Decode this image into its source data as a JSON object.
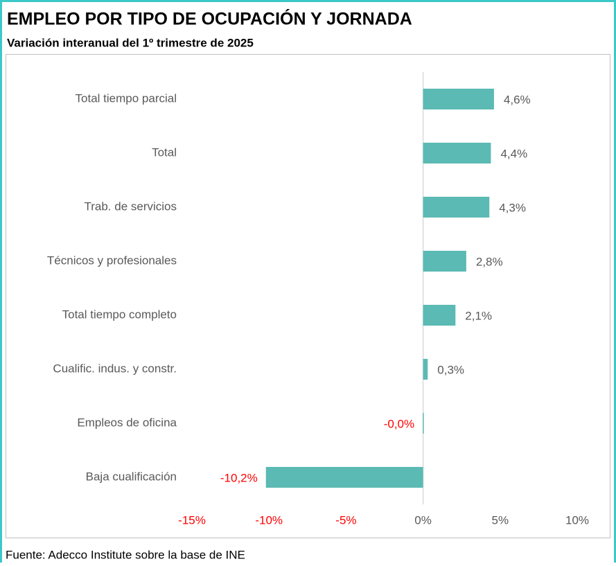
{
  "chart_data": {
    "type": "barh",
    "title": "EMPLEO POR TIPO DE OCUPACIÓN Y JORNADA",
    "subtitle": "Variación interanual del 1º trimestre de 2025",
    "categories": [
      "Total tiempo parcial",
      "Total",
      "Trab. de servicios",
      "Técnicos y profesionales",
      "Total tiempo completo",
      "Cualific. indus. y constr.",
      "Empleos de oficina",
      "Baja cualificación"
    ],
    "values": [
      4.6,
      4.4,
      4.3,
      2.8,
      2.1,
      0.3,
      -0.02,
      -10.2
    ],
    "value_labels": [
      "4,6%",
      "4,4%",
      "4,3%",
      "2,8%",
      "2,1%",
      "0,3%",
      "-0,0%",
      "-10,2%"
    ],
    "color": "#5bbab3",
    "negative_label_color": "#ff0000",
    "xlim": [
      -15,
      10
    ],
    "xticks": [
      {
        "value": -15,
        "label": "-15%"
      },
      {
        "value": -10,
        "label": "-10%"
      },
      {
        "value": -5,
        "label": "-5%"
      },
      {
        "value": 0,
        "label": "0%"
      },
      {
        "value": 5,
        "label": "5%"
      },
      {
        "value": 10,
        "label": "10%"
      }
    ],
    "source": "Fuente: Adecco Institute sobre la base de INE"
  }
}
